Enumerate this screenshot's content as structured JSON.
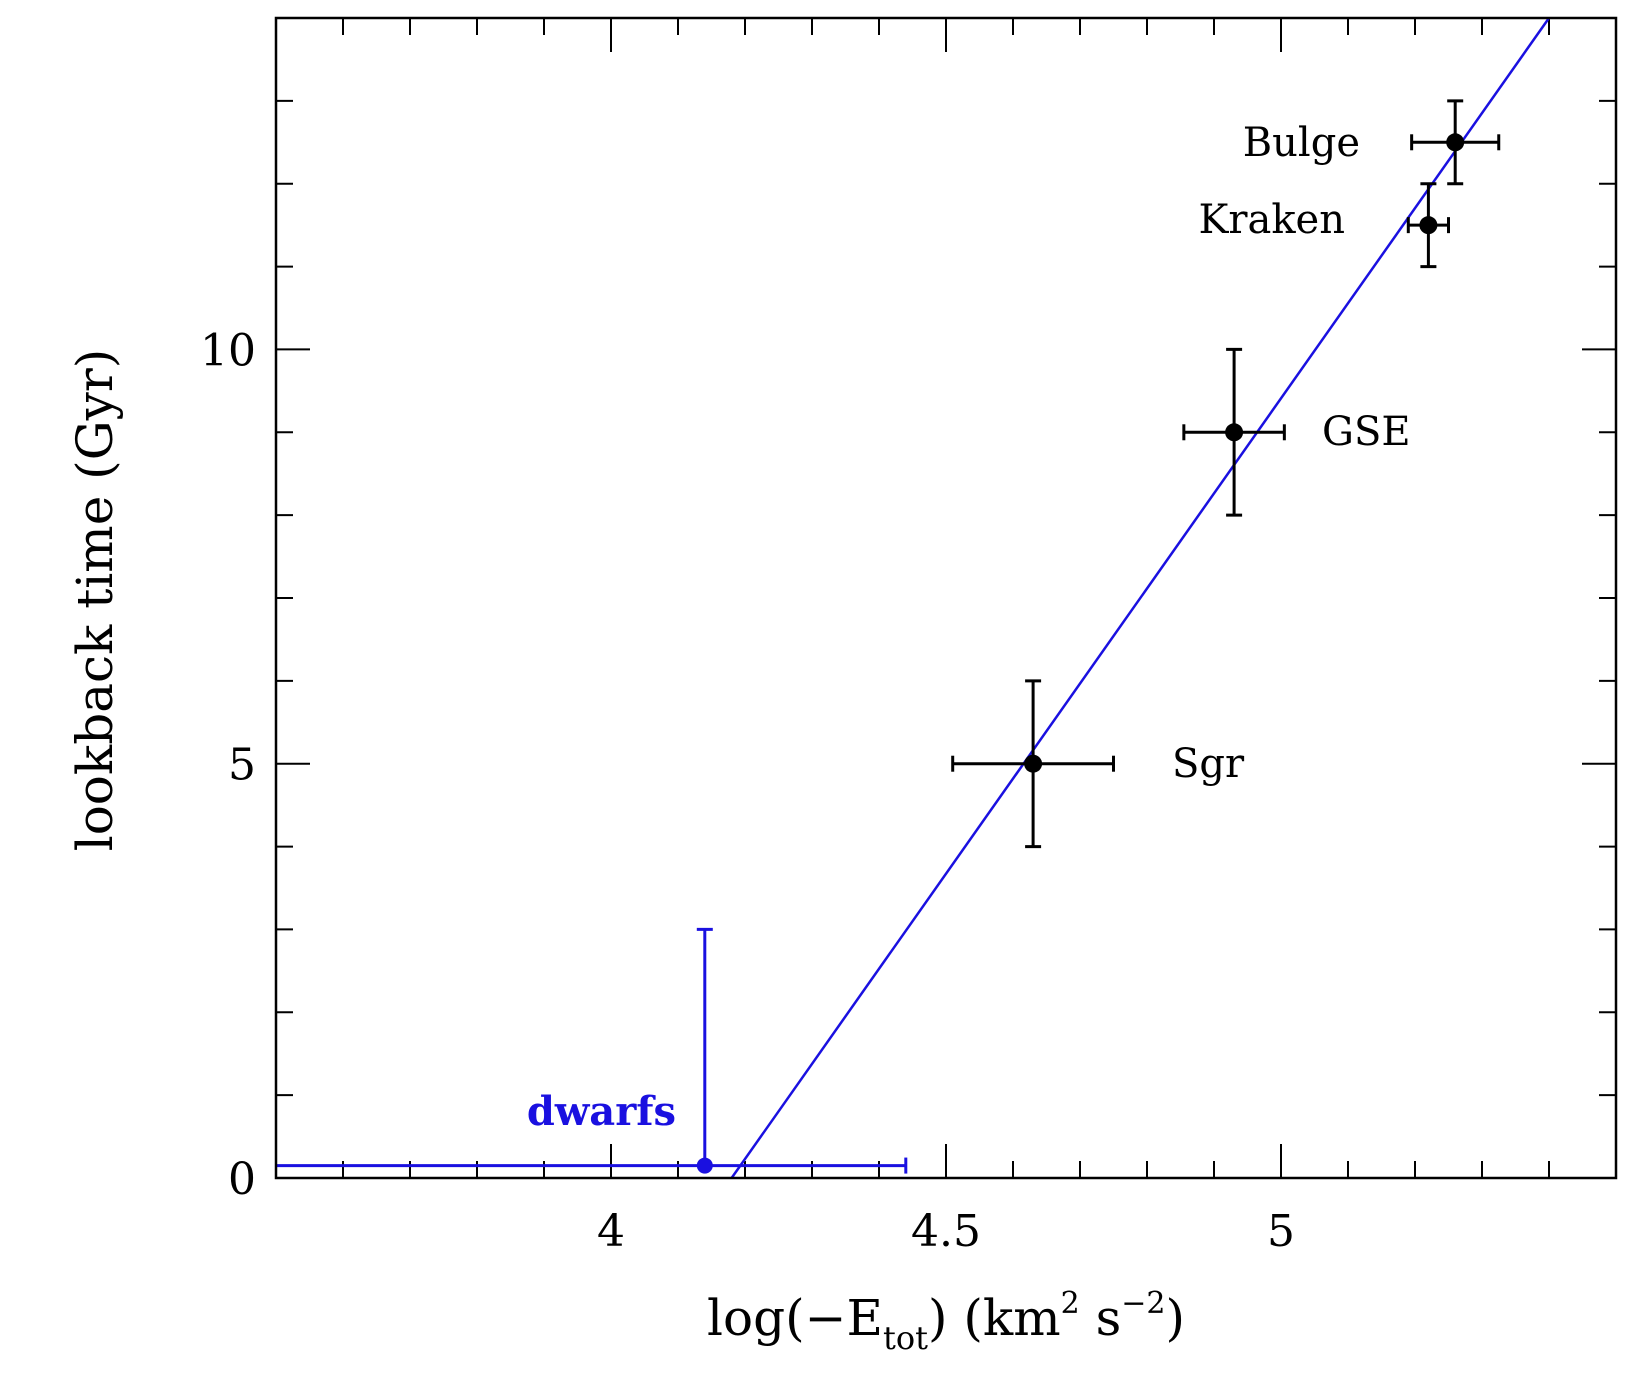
{
  "chart_data": {
    "type": "scatter",
    "title": "",
    "xlabel": {
      "prefix": "log(−E",
      "sub": "tot",
      "middle": ") (km",
      "sup1": "2",
      "middle2": " s",
      "sup2": "−2",
      "suffix": ")"
    },
    "ylabel": "lookback time (Gyr)",
    "xlim": [
      3.5,
      5.5
    ],
    "ylim": [
      0,
      14
    ],
    "x_major_ticks": [
      4,
      4.5,
      5
    ],
    "x_tick_labels": [
      "4",
      "4.5",
      "5"
    ],
    "x_minor_step": 0.1,
    "y_major_ticks": [
      0,
      5,
      10
    ],
    "y_tick_labels": [
      "0",
      "5",
      "10"
    ],
    "y_minor_step": 1,
    "grid": false,
    "colors": {
      "points": "#000000",
      "dwarfs": "#1a10e0",
      "fit": "#1a10e0"
    },
    "points": [
      {
        "label": "Bulge",
        "x": 5.26,
        "y": 12.5,
        "xerr": 0.065,
        "yerr": 0.5
      },
      {
        "label": "Kraken",
        "x": 5.22,
        "y": 11.5,
        "xerr": 0.03,
        "yerr": 0.5
      },
      {
        "label": "GSE",
        "x": 4.93,
        "y": 9.0,
        "xerr": 0.075,
        "yerr": 1.0
      },
      {
        "label": "Sgr",
        "x": 4.63,
        "y": 5.0,
        "xerr": 0.12,
        "yerr": 1.0
      }
    ],
    "dwarfs": {
      "label": "dwarfs",
      "x": 4.14,
      "y": 0.15,
      "xmin": 3.5,
      "xmax": 4.44,
      "ymax": 3.0
    },
    "fit_line": {
      "x": [
        4.18,
        5.4
      ],
      "y": [
        0.0,
        14.0
      ]
    }
  }
}
